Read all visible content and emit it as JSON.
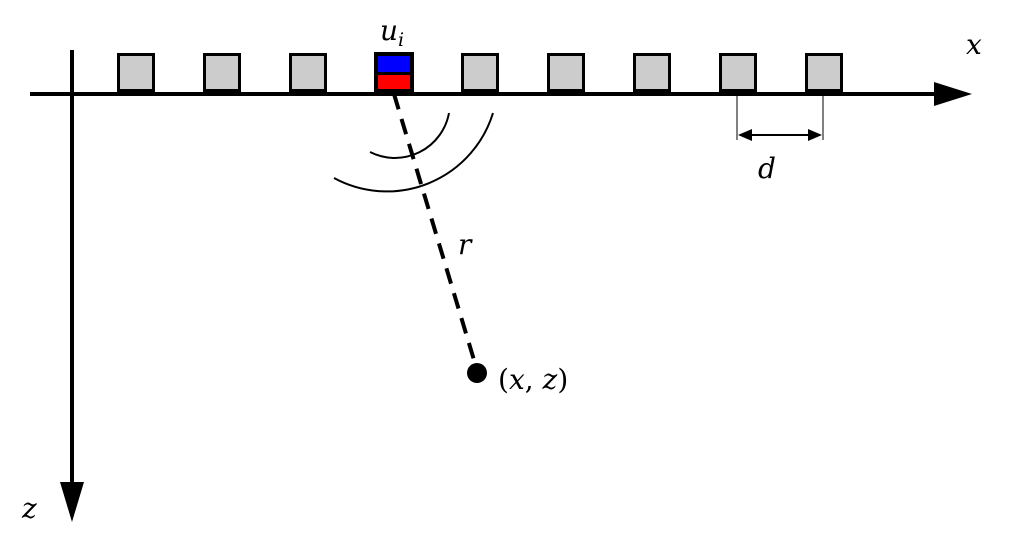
{
  "labels": {
    "x_axis": "x",
    "z_axis": "z",
    "element": "u",
    "element_subscript": "i",
    "spacing": "d",
    "distance": "r",
    "point_open": "(",
    "point_x": "x",
    "point_comma": ", ",
    "point_z": "z",
    "point_close": ")"
  },
  "colors": {
    "element_fill": "#cccccc",
    "active_top": "#0000ff",
    "active_bottom": "#ff0000",
    "stroke": "#000000"
  },
  "array": {
    "element_count": 9,
    "active_index": 3
  }
}
